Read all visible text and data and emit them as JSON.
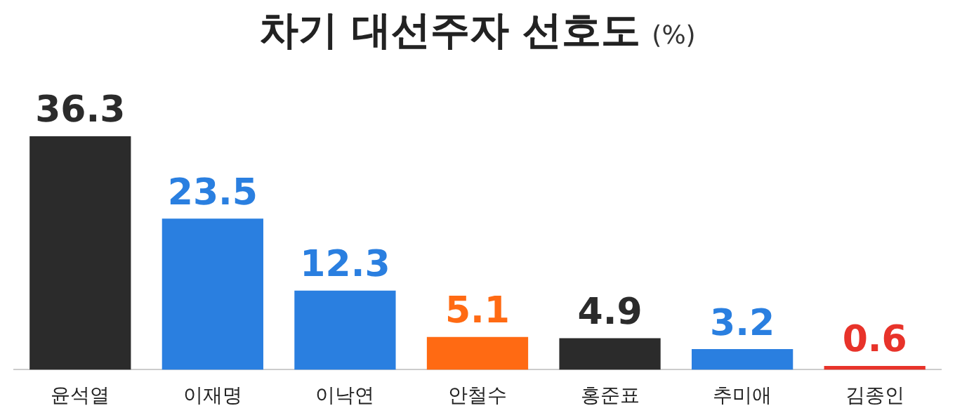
{
  "chart_data": {
    "type": "bar",
    "title": "차기 대선주자 선호도",
    "subtitle": "(%)",
    "categories": [
      "윤석열",
      "이재명",
      "이낙연",
      "안철수",
      "홍준표",
      "추미애",
      "김종인"
    ],
    "values": [
      36.3,
      23.5,
      12.3,
      5.1,
      4.9,
      3.2,
      0.6
    ],
    "colors": [
      "#2b2b2b",
      "#2a7fe0",
      "#2a7fe0",
      "#ff6a13",
      "#2b2b2b",
      "#2a7fe0",
      "#e8332a"
    ],
    "data_labels": true,
    "grid": false,
    "legend": false
  }
}
